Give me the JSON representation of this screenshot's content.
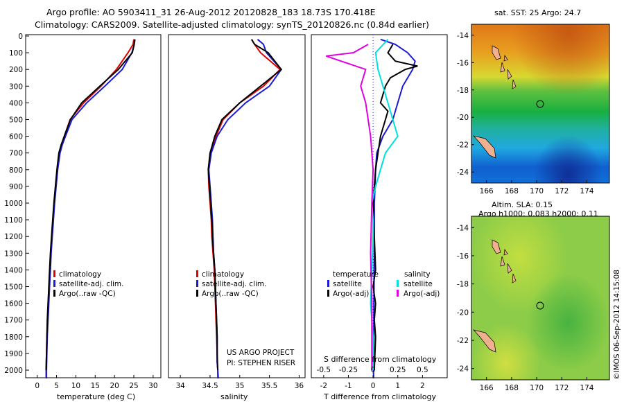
{
  "header": {
    "line1": "Argo profile: AO 5903411_31 26-Aug-2012 20120828_183 18.73S 170.418E",
    "line2": "Climatology: CARS2009. Satellite-adjusted climatology: synTS_20120826.nc (0.84d earlier)"
  },
  "colors": {
    "climatology": "#e00000",
    "satellite": "#1a1ad6",
    "argo": "#000000",
    "cyan": "#00e0e0",
    "magenta": "#e000e0"
  },
  "depth_ticks": [
    "0",
    "100",
    "200",
    "300",
    "400",
    "500",
    "600",
    "700",
    "800",
    "900",
    "1000",
    "1100",
    "1200",
    "1300",
    "1400",
    "1500",
    "1600",
    "1700",
    "1800",
    "1900",
    "2000"
  ],
  "chart_data": [
    {
      "type": "line",
      "panel": "temperature",
      "xlabel": "temperature (deg C)",
      "xticks": [
        "0",
        "5",
        "10",
        "15",
        "20",
        "25",
        "30"
      ],
      "xlim": [
        -3,
        32
      ],
      "ylim": [
        2060,
        0
      ],
      "legend": [
        "climatology",
        "satellite-adj. clim.",
        "Argo(..raw -QC)"
      ],
      "series": [
        {
          "name": "climatology",
          "color": "#e00000",
          "x": [
            25.0,
            24.8,
            23.5,
            20.5,
            16.5,
            12.0,
            8.5,
            7.0,
            6.3,
            5.7,
            5.2,
            4.8,
            4.4,
            4.1,
            3.8,
            3.5,
            3.3,
            3.1,
            2.9,
            2.7,
            2.5,
            2.4,
            2.3,
            2.3
          ],
          "y": [
            20,
            50,
            100,
            200,
            300,
            400,
            500,
            600,
            650,
            700,
            800,
            900,
            1000,
            1100,
            1200,
            1300,
            1400,
            1500,
            1600,
            1700,
            1800,
            1900,
            2000,
            2050
          ]
        },
        {
          "name": "satellite-adj. clim.",
          "color": "#1a1ad6",
          "x": [
            25.3,
            25.1,
            24.5,
            22.0,
            17.5,
            12.8,
            9.0,
            7.3,
            6.5,
            5.9,
            5.3,
            4.9,
            4.5,
            4.2,
            3.9,
            3.6,
            3.4,
            3.2,
            3.0,
            2.8,
            2.6,
            2.5,
            2.4,
            2.4
          ],
          "y": [
            20,
            50,
            100,
            200,
            300,
            400,
            500,
            600,
            650,
            700,
            800,
            900,
            1000,
            1100,
            1200,
            1300,
            1400,
            1500,
            1600,
            1700,
            1800,
            1900,
            2000,
            2050
          ]
        },
        {
          "name": "Argo(..raw -QC)",
          "color": "#000000",
          "x": [
            25.2,
            25.1,
            24.6,
            21.0,
            16.2,
            11.5,
            8.6,
            7.0,
            6.2,
            5.6,
            5.1,
            4.7,
            4.3,
            4.0,
            3.7,
            3.4,
            3.2,
            3.0,
            2.8,
            2.6,
            2.5,
            2.4,
            2.3
          ],
          "y": [
            20,
            50,
            100,
            200,
            300,
            400,
            500,
            600,
            650,
            700,
            800,
            900,
            1000,
            1100,
            1200,
            1300,
            1400,
            1500,
            1600,
            1700,
            1800,
            1900,
            2000
          ]
        }
      ]
    },
    {
      "type": "line",
      "panel": "salinity",
      "xlabel": "salinity",
      "xticks": [
        "34",
        "34.5",
        "35",
        "35.5",
        "36"
      ],
      "xlim": [
        33.8,
        36.1
      ],
      "ylim": [
        2060,
        0
      ],
      "legend": [
        "climatology",
        "satellite-adj. clim.",
        "Argo(..raw -QC)"
      ],
      "series": [
        {
          "name": "climatology",
          "color": "#e00000",
          "x": [
            35.2,
            35.25,
            35.35,
            35.68,
            35.4,
            35.0,
            34.72,
            34.6,
            34.5,
            34.47,
            34.48,
            34.5,
            34.52,
            34.53,
            34.55,
            34.57,
            34.58,
            34.59,
            34.6,
            34.61,
            34.62,
            34.62,
            34.63,
            34.63
          ],
          "y": [
            20,
            50,
            100,
            200,
            300,
            400,
            500,
            600,
            700,
            800,
            900,
            1000,
            1100,
            1200,
            1300,
            1400,
            1500,
            1600,
            1700,
            1800,
            1900,
            1950,
            2000,
            2050
          ]
        },
        {
          "name": "satellite-adj. clim.",
          "color": "#1a1ad6",
          "x": [
            35.3,
            35.4,
            35.45,
            35.7,
            35.5,
            35.1,
            34.8,
            34.62,
            34.52,
            34.48,
            34.5,
            34.52,
            34.54,
            34.55,
            34.56,
            34.58,
            34.59,
            34.6,
            34.61,
            34.62,
            34.62,
            34.62,
            34.63,
            34.64
          ],
          "y": [
            20,
            50,
            100,
            200,
            300,
            400,
            500,
            600,
            700,
            800,
            900,
            1000,
            1100,
            1200,
            1300,
            1400,
            1500,
            1600,
            1700,
            1800,
            1900,
            1950,
            2000,
            2050
          ]
        },
        {
          "name": "Argo(..raw -QC)",
          "color": "#000000",
          "x": [
            35.2,
            35.25,
            35.48,
            35.7,
            35.35,
            35.0,
            34.7,
            34.58,
            34.5,
            34.47,
            34.49,
            34.51,
            34.53,
            34.54,
            34.56,
            34.58,
            34.59,
            34.6,
            34.61,
            34.62,
            34.62,
            34.63
          ],
          "y": [
            20,
            50,
            100,
            200,
            300,
            400,
            500,
            600,
            700,
            800,
            900,
            1000,
            1100,
            1200,
            1300,
            1400,
            1500,
            1600,
            1700,
            1800,
            1900,
            2000
          ]
        }
      ]
    },
    {
      "type": "line",
      "panel": "difference",
      "xlabel_bottom": "T difference from climatology",
      "xticks_bottom": [
        "-2",
        "-1",
        "0",
        "1",
        "2"
      ],
      "xlim": [
        -2.5,
        3.0
      ],
      "label_top": "S difference from climatology",
      "xticks_top": [
        "-0.5",
        "-0.25",
        "0",
        "0.25",
        "0.5"
      ],
      "legend_temperature": {
        "title": "temperature",
        "items": [
          "satellite",
          "Argo(-adj)"
        ]
      },
      "legend_salinity": {
        "title": "salinity",
        "items": [
          "satellite",
          "Argo(-adj)"
        ]
      },
      "series": [
        {
          "name": "satellite",
          "group": "temperature",
          "color": "#1a1ad6",
          "x": [
            0.3,
            0.9,
            1.4,
            1.7,
            1.6,
            1.2,
            1.0,
            0.8,
            0.4,
            0.15,
            0.1,
            0.08,
            0.05,
            0.05,
            0.04,
            0.04,
            0.03,
            0.03,
            0.03,
            0.02,
            0.02,
            0.02
          ],
          "y": [
            20,
            50,
            100,
            150,
            200,
            300,
            400,
            500,
            600,
            700,
            800,
            900,
            1000,
            1200,
            1400,
            1500,
            1600,
            1700,
            1800,
            1900,
            2000,
            2050
          ]
        },
        {
          "name": "Argo(-adj)",
          "group": "temperature",
          "color": "#000000",
          "x": [
            0.8,
            0.6,
            0.9,
            1.8,
            1.3,
            0.7,
            0.5,
            0.3,
            0.6,
            0.3,
            0.2,
            0.1,
            0.05,
            0.0,
            0.05,
            0.1,
            0.0,
            0.1,
            0.05,
            0.1,
            0.05
          ],
          "y": [
            50,
            100,
            150,
            180,
            200,
            250,
            300,
            400,
            450,
            600,
            700,
            800,
            900,
            1000,
            1200,
            1400,
            1500,
            1600,
            1700,
            1800,
            2000
          ]
        },
        {
          "name": "satellite",
          "group": "salinity",
          "color": "#00e0e0",
          "x": [
            0.6,
            0.1,
            0.2,
            0.4,
            0.6,
            0.8,
            1.0,
            0.5,
            0.3,
            0.1,
            -0.05,
            0.0,
            0.0,
            -0.05,
            -0.1,
            0.0,
            0.0
          ],
          "y": [
            20,
            100,
            200,
            300,
            400,
            500,
            600,
            700,
            800,
            900,
            1000,
            1100,
            1200,
            1400,
            1600,
            1800,
            2000
          ]
        },
        {
          "name": "Argo(-adj)",
          "group": "salinity",
          "color": "#e000e0",
          "x": [
            -0.2,
            -0.8,
            -1.9,
            -0.3,
            -0.4,
            -0.5,
            -0.3,
            -0.1,
            -0.05,
            0.0,
            -0.05,
            -0.1,
            -0.05,
            -0.05
          ],
          "y": [
            50,
            100,
            120,
            200,
            250,
            300,
            400,
            600,
            700,
            800,
            1000,
            1300,
            1600,
            2000
          ]
        }
      ]
    }
  ],
  "maps": {
    "top": {
      "title": "sat. SST: 25 Argo: 24.7",
      "yticks": [
        "-14",
        "-16",
        "-18",
        "-20",
        "-22",
        "-24"
      ],
      "xticks": [
        "166",
        "168",
        "170",
        "172",
        "174"
      ]
    },
    "bottom": {
      "title1": "Altim. SLA: 0.15",
      "title2": "Argo h1000: 0.083 h2000: 0.11",
      "yticks": [
        "-14",
        "-16",
        "-18",
        "-20",
        "-22",
        "-24"
      ],
      "xticks": [
        "166",
        "168",
        "170",
        "172",
        "174"
      ]
    }
  },
  "credits": {
    "project": "US ARGO PROJECT",
    "pi": "PI: STEPHEN RISER",
    "imos": "©IMOS 06-Sep-2012 14:15:08"
  }
}
